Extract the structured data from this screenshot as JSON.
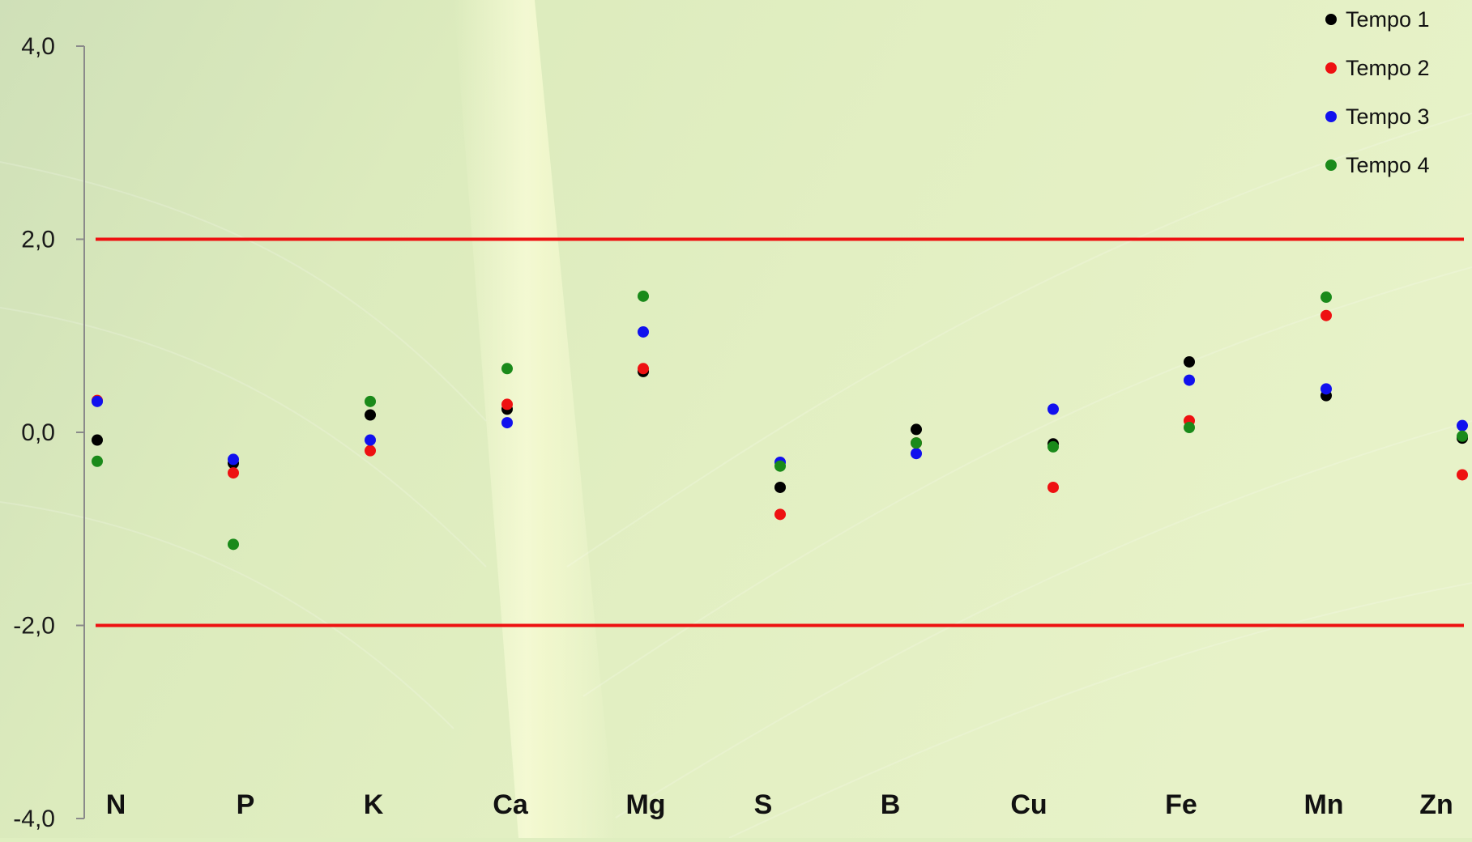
{
  "chart_data": {
    "type": "scatter",
    "categories": [
      "N",
      "P",
      "K",
      "Ca",
      "Mg",
      "S",
      "B",
      "Cu",
      "Fe",
      "Mn",
      "Zn"
    ],
    "ylim": [
      -4.0,
      4.0
    ],
    "yticks": [
      -4.0,
      -2.0,
      0.0,
      2.0,
      4.0
    ],
    "ytick_labels": [
      "-4,0",
      "-2,0",
      "0,0",
      "2,0",
      "4,0"
    ],
    "reference_lines": [
      {
        "y": 2.0,
        "color": "#ee1111"
      },
      {
        "y": -2.0,
        "color": "#ee1111"
      }
    ],
    "legend_position": "top-right",
    "grid": false,
    "series": [
      {
        "name": "Tempo 1",
        "color": "#000000",
        "values": [
          -0.08,
          -0.32,
          0.18,
          0.24,
          0.63,
          -0.57,
          0.03,
          -0.12,
          0.73,
          0.38,
          -0.06
        ]
      },
      {
        "name": "Tempo 2",
        "color": "#ee1111",
        "values": [
          0.33,
          -0.42,
          -0.19,
          0.29,
          0.66,
          -0.85,
          -0.11,
          -0.57,
          0.12,
          1.21,
          -0.44
        ]
      },
      {
        "name": "Tempo 3",
        "color": "#1111ee",
        "values": [
          0.32,
          -0.28,
          -0.08,
          0.1,
          1.04,
          -0.31,
          -0.22,
          0.24,
          0.54,
          0.45,
          0.07
        ]
      },
      {
        "name": "Tempo 4",
        "color": "#1a8a1a",
        "values": [
          -0.3,
          -1.16,
          0.32,
          0.66,
          1.41,
          -0.35,
          -0.11,
          -0.15,
          0.05,
          1.4,
          -0.04
        ]
      }
    ]
  }
}
